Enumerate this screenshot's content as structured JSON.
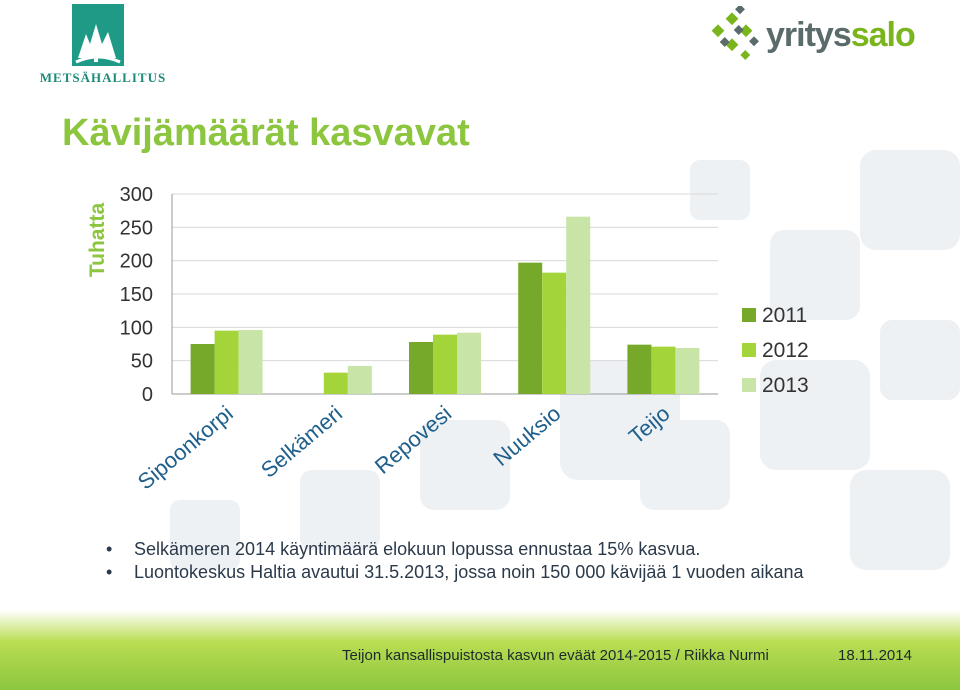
{
  "logos": {
    "left_text": "METSÄHALLITUS",
    "right_text_a": "yritys",
    "right_text_b": "salo"
  },
  "title": "Kävijämäärät kasvavat",
  "chart_data": {
    "type": "bar",
    "title": "",
    "ylabel": "Tuhatta",
    "xlabel": "",
    "ylim": [
      0,
      300
    ],
    "yticks": [
      0,
      50,
      100,
      150,
      200,
      250,
      300
    ],
    "grid": true,
    "legend_position": "right",
    "categories": [
      "Sipoonkorpi",
      "Selkämeri",
      "Repovesi",
      "Nuuksio",
      "Teijo"
    ],
    "series": [
      {
        "name": "2011",
        "color": "#76a82a",
        "values": [
          75,
          0,
          78,
          197,
          74
        ]
      },
      {
        "name": "2012",
        "color": "#a3d43a",
        "values": [
          95,
          32,
          89,
          182,
          71
        ]
      },
      {
        "name": "2013",
        "color": "#c8e4a6",
        "values": [
          96,
          42,
          92,
          266,
          69
        ]
      }
    ]
  },
  "bullets": [
    "Selkämeren 2014 käyntimäärä elokuun lopussa ennustaa 15% kasvua.",
    "Luontokeskus Haltia avautui 31.5.2013, jossa noin 150 000 kävijää 1 vuoden aikana"
  ],
  "footer": {
    "text": "Teijon kansallispuistosta kasvun eväät 2014-2015 / Riikka Nurmi",
    "date": "18.11.2014"
  },
  "colors": {
    "title": "#8cc63f",
    "text": "#2b3a4a",
    "accent": "#8cc63f"
  }
}
